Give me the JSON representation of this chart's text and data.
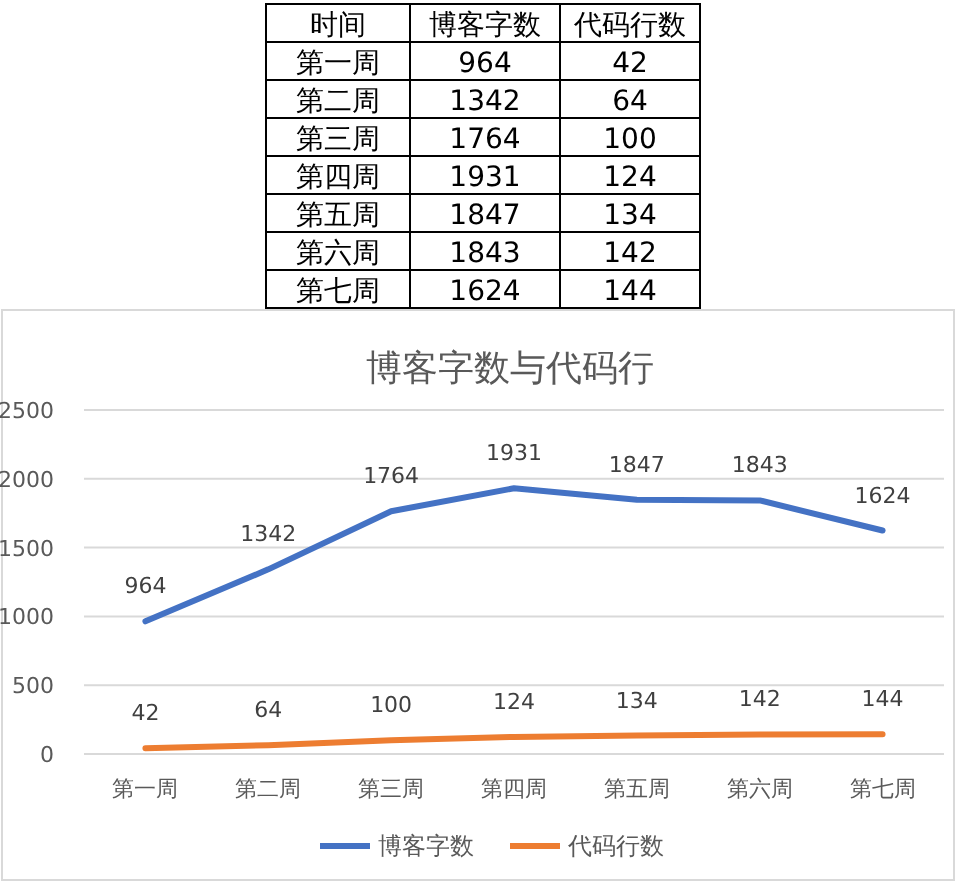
{
  "chart_data": [
    {
      "type": "other",
      "annotations": [
        "时间"
      ],
      "categories": [
        "第一周",
        "第二周",
        "第三周",
        "第四周",
        "第五周",
        "第六周",
        "第七周"
      ],
      "series": [
        {
          "name": "博客字数",
          "values": [
            964,
            1342,
            1764,
            1931,
            1847,
            1843,
            1624
          ]
        },
        {
          "name": "代码行数",
          "values": [
            42,
            64,
            100,
            124,
            134,
            142,
            144
          ]
        }
      ],
      "data_labels": true
    },
    {
      "type": "line",
      "title": "博客字数与代码行",
      "categories": [
        "第一周",
        "第二周",
        "第三周",
        "第四周",
        "第五周",
        "第六周",
        "第七周"
      ],
      "series": [
        {
          "name": "博客字数",
          "color": "#4472c4",
          "values": [
            964,
            1342,
            1764,
            1931,
            1847,
            1843,
            1624
          ]
        },
        {
          "name": "代码行数",
          "color": "#ed7d31",
          "values": [
            42,
            64,
            100,
            124,
            134,
            142,
            144
          ]
        }
      ],
      "ylim": [
        0,
        2500
      ],
      "yticks": [
        0,
        500,
        1000,
        1500,
        2000,
        2500
      ],
      "grid": "y",
      "legend": "bottom",
      "data_labels": true,
      "line_style": "solid"
    }
  ]
}
